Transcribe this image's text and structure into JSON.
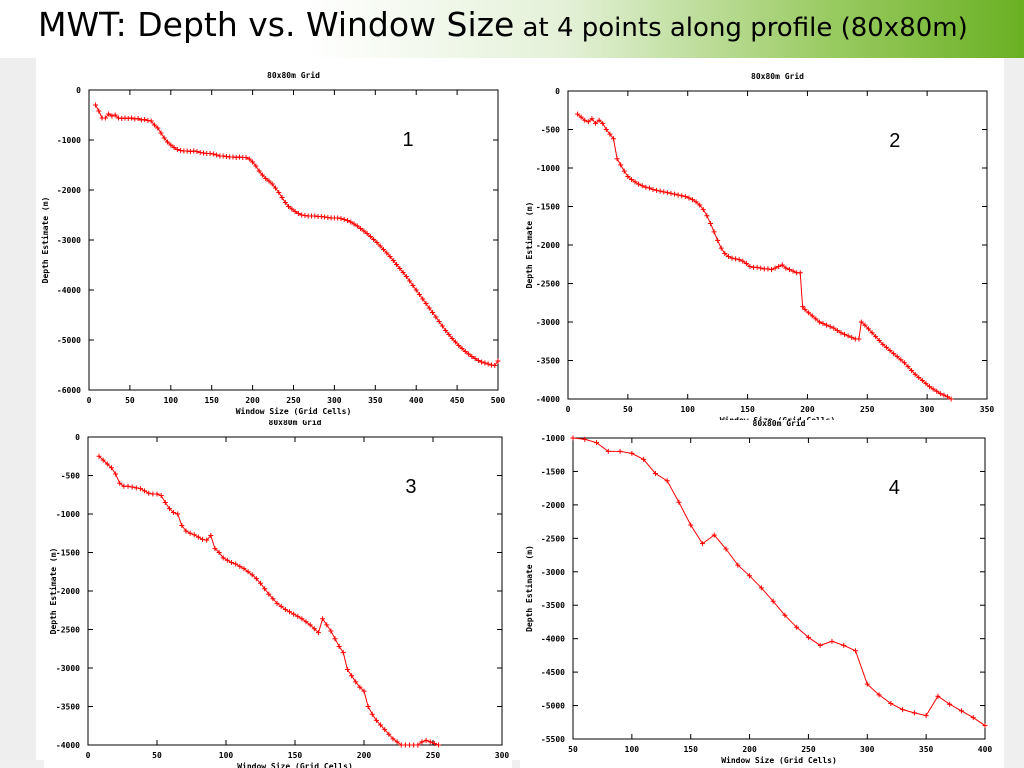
{
  "slide": {
    "title_main": "MWT: Depth vs. Window Size",
    "title_sub": " at 4 points along profile (80x80m)",
    "accent_color": "#6ab023"
  },
  "chart_data": [
    {
      "type": "line",
      "panel_number": "1",
      "title": "80x80m Grid",
      "xlabel": "Window Size (Grid Cells)",
      "ylabel": "Depth Estimate (m)",
      "xlim": [
        0,
        500
      ],
      "ylim": [
        -6000,
        0
      ],
      "xticks": [
        0,
        50,
        100,
        150,
        200,
        250,
        300,
        350,
        400,
        450,
        500
      ],
      "yticks": [
        0,
        -1000,
        -2000,
        -3000,
        -4000,
        -5000,
        -6000
      ],
      "line_color": "#ff0000",
      "markers": "plus",
      "x": [
        8,
        12,
        16,
        20,
        24,
        28,
        32,
        36,
        40,
        44,
        48,
        52,
        56,
        60,
        64,
        68,
        72,
        76,
        80,
        84,
        88,
        92,
        96,
        100,
        104,
        108,
        112,
        116,
        120,
        124,
        128,
        132,
        136,
        140,
        144,
        148,
        152,
        156,
        160,
        164,
        168,
        172,
        176,
        180,
        184,
        188,
        192,
        196,
        200,
        204,
        208,
        212,
        216,
        220,
        224,
        228,
        232,
        236,
        240,
        244,
        248,
        252,
        256,
        260,
        264,
        268,
        272,
        276,
        280,
        284,
        288,
        292,
        296,
        300,
        304,
        308,
        312,
        316,
        320,
        324,
        328,
        332,
        336,
        340,
        344,
        348,
        352,
        356,
        360,
        364,
        368,
        372,
        376,
        380,
        384,
        388,
        392,
        396,
        400,
        404,
        408,
        412,
        416,
        420,
        424,
        428,
        432,
        436,
        440,
        444,
        448,
        452,
        456,
        460,
        464,
        468,
        472,
        476,
        480,
        484,
        488,
        492,
        496,
        500
      ],
      "y": [
        -300,
        -420,
        -560,
        -560,
        -480,
        -520,
        -500,
        -560,
        -570,
        -560,
        -570,
        -560,
        -580,
        -570,
        -600,
        -590,
        -610,
        -620,
        -700,
        -760,
        -860,
        -960,
        -1040,
        -1100,
        -1150,
        -1190,
        -1210,
        -1220,
        -1220,
        -1230,
        -1220,
        -1230,
        -1250,
        -1260,
        -1270,
        -1270,
        -1280,
        -1300,
        -1320,
        -1320,
        -1330,
        -1340,
        -1340,
        -1350,
        -1340,
        -1350,
        -1350,
        -1380,
        -1440,
        -1520,
        -1620,
        -1700,
        -1770,
        -1820,
        -1880,
        -1960,
        -2050,
        -2150,
        -2250,
        -2330,
        -2380,
        -2430,
        -2470,
        -2500,
        -2510,
        -2520,
        -2520,
        -2520,
        -2530,
        -2530,
        -2540,
        -2550,
        -2560,
        -2560,
        -2560,
        -2570,
        -2590,
        -2610,
        -2640,
        -2680,
        -2720,
        -2770,
        -2820,
        -2870,
        -2930,
        -2990,
        -3050,
        -3120,
        -3190,
        -3260,
        -3330,
        -3410,
        -3490,
        -3570,
        -3650,
        -3730,
        -3820,
        -3910,
        -4000,
        -4090,
        -4180,
        -4270,
        -4360,
        -4450,
        -4540,
        -4630,
        -4720,
        -4810,
        -4890,
        -4970,
        -5040,
        -5110,
        -5170,
        -5230,
        -5280,
        -5330,
        -5370,
        -5410,
        -5440,
        -5460,
        -5480,
        -5500,
        -5510,
        -5420
      ]
    },
    {
      "type": "line",
      "panel_number": "2",
      "title": "80x80m Grid",
      "xlabel": "Window Size (Grid Cells)",
      "ylabel": "Depth Estimate (m)",
      "xlim": [
        0,
        350
      ],
      "ylim": [
        -4000,
        0
      ],
      "xticks": [
        0,
        50,
        100,
        150,
        200,
        250,
        300,
        350
      ],
      "yticks": [
        0,
        -500,
        -1000,
        -1500,
        -2000,
        -2500,
        -3000,
        -3500,
        -4000
      ],
      "line_color": "#ff0000",
      "markers": "plus",
      "x": [
        8,
        11,
        14,
        17,
        20,
        23,
        26,
        29,
        32,
        35,
        38,
        41,
        44,
        47,
        50,
        53,
        56,
        59,
        62,
        65,
        68,
        71,
        74,
        77,
        80,
        83,
        86,
        89,
        92,
        95,
        98,
        101,
        104,
        107,
        110,
        113,
        116,
        119,
        122,
        125,
        128,
        131,
        134,
        137,
        140,
        143,
        146,
        149,
        152,
        155,
        158,
        161,
        164,
        167,
        170,
        173,
        176,
        179,
        182,
        185,
        188,
        191,
        194,
        196,
        198,
        201,
        204,
        207,
        210,
        213,
        216,
        219,
        222,
        225,
        228,
        231,
        234,
        237,
        240,
        243,
        245,
        248,
        251,
        254,
        257,
        260,
        263,
        266,
        269,
        272,
        275,
        278,
        281,
        284,
        287,
        290,
        293,
        296,
        299,
        302,
        305,
        308,
        311,
        314,
        317,
        320
      ],
      "y": [
        -300,
        -340,
        -380,
        -400,
        -360,
        -420,
        -380,
        -420,
        -500,
        -560,
        -620,
        -880,
        -960,
        -1040,
        -1110,
        -1150,
        -1180,
        -1210,
        -1230,
        -1250,
        -1260,
        -1280,
        -1290,
        -1300,
        -1310,
        -1320,
        -1330,
        -1340,
        -1350,
        -1360,
        -1370,
        -1390,
        -1410,
        -1440,
        -1480,
        -1540,
        -1620,
        -1720,
        -1830,
        -1940,
        -2040,
        -2110,
        -2150,
        -2170,
        -2180,
        -2190,
        -2210,
        -2240,
        -2280,
        -2290,
        -2290,
        -2300,
        -2310,
        -2310,
        -2320,
        -2300,
        -2280,
        -2260,
        -2300,
        -2320,
        -2340,
        -2360,
        -2360,
        -2800,
        -2840,
        -2880,
        -2920,
        -2960,
        -3000,
        -3020,
        -3040,
        -3060,
        -3080,
        -3110,
        -3140,
        -3160,
        -3180,
        -3200,
        -3220,
        -3220,
        -3000,
        -3040,
        -3090,
        -3140,
        -3190,
        -3240,
        -3290,
        -3330,
        -3370,
        -3410,
        -3450,
        -3490,
        -3530,
        -3580,
        -3630,
        -3680,
        -3720,
        -3760,
        -3800,
        -3840,
        -3870,
        -3900,
        -3930,
        -3950,
        -3970,
        -4000
      ]
    },
    {
      "type": "line",
      "panel_number": "3",
      "title": "80x80m Grid",
      "xlabel": "Window Size (Grid Cells)",
      "ylabel": "Depth Estimate (m)",
      "xlim": [
        0,
        300
      ],
      "ylim": [
        -4000,
        0
      ],
      "xticks": [
        0,
        50,
        100,
        150,
        200,
        250,
        300
      ],
      "yticks": [
        0,
        -500,
        -1000,
        -1500,
        -2000,
        -2500,
        -3000,
        -3500,
        -4000
      ],
      "line_color": "#ff0000",
      "markers": "plus",
      "x": [
        8,
        11,
        14,
        17,
        20,
        23,
        26,
        29,
        32,
        35,
        38,
        41,
        44,
        47,
        50,
        53,
        56,
        59,
        62,
        65,
        68,
        71,
        74,
        77,
        80,
        83,
        86,
        89,
        92,
        95,
        98,
        101,
        104,
        107,
        110,
        113,
        116,
        119,
        122,
        125,
        128,
        131,
        134,
        137,
        140,
        143,
        146,
        149,
        152,
        155,
        158,
        161,
        164,
        167,
        170,
        173,
        176,
        179,
        182,
        185,
        188,
        191,
        194,
        197,
        200,
        203,
        206,
        209,
        212,
        215,
        218,
        221,
        224,
        227,
        230,
        233,
        236,
        239,
        242,
        245,
        248,
        251,
        254
      ],
      "y": [
        -250,
        -300,
        -350,
        -400,
        -480,
        -600,
        -640,
        -640,
        -650,
        -660,
        -670,
        -700,
        -730,
        -740,
        -740,
        -760,
        -850,
        -930,
        -980,
        -1000,
        -1150,
        -1220,
        -1250,
        -1270,
        -1300,
        -1330,
        -1340,
        -1280,
        -1450,
        -1500,
        -1570,
        -1600,
        -1630,
        -1650,
        -1680,
        -1710,
        -1750,
        -1790,
        -1840,
        -1900,
        -1970,
        -2040,
        -2100,
        -2160,
        -2200,
        -2240,
        -2270,
        -2300,
        -2330,
        -2360,
        -2400,
        -2440,
        -2490,
        -2540,
        -2360,
        -2440,
        -2520,
        -2620,
        -2720,
        -2800,
        -3020,
        -3100,
        -3180,
        -3250,
        -3300,
        -3500,
        -3600,
        -3680,
        -3740,
        -3800,
        -3860,
        -3920,
        -3960,
        -4000,
        -4000,
        -4000,
        -4000,
        -4000,
        -3960,
        -3940,
        -3960,
        -3980,
        -4000
      ]
    },
    {
      "type": "line",
      "panel_number": "4",
      "title": "80x80m Grid",
      "xlabel": "Window Size (Grid Cells)",
      "ylabel": "Depth Estimate (m)",
      "xlim": [
        50,
        400
      ],
      "ylim": [
        -5500,
        -1000
      ],
      "xticks": [
        50,
        100,
        150,
        200,
        250,
        300,
        350,
        400
      ],
      "yticks": [
        -1000,
        -1500,
        -2000,
        -2500,
        -3000,
        -3500,
        -4000,
        -4500,
        -5000,
        -5500
      ],
      "line_color": "#ff0000",
      "markers": "plus",
      "x": [
        50,
        60,
        70,
        80,
        90,
        100,
        110,
        120,
        130,
        140,
        150,
        160,
        170,
        180,
        190,
        200,
        210,
        220,
        230,
        240,
        250,
        260,
        270,
        280,
        290,
        300,
        310,
        320,
        330,
        340,
        350,
        360,
        370,
        380,
        390,
        400
      ],
      "y": [
        -1000,
        -1020,
        -1070,
        -1200,
        -1200,
        -1230,
        -1320,
        -1530,
        -1640,
        -1960,
        -2300,
        -2580,
        -2450,
        -2660,
        -2900,
        -3060,
        -3240,
        -3440,
        -3650,
        -3830,
        -3980,
        -4100,
        -4040,
        -4100,
        -4180,
        -4680,
        -4840,
        -4970,
        -5060,
        -5110,
        -5150,
        -4860,
        -4980,
        -5080,
        -5180,
        -5300
      ]
    }
  ]
}
